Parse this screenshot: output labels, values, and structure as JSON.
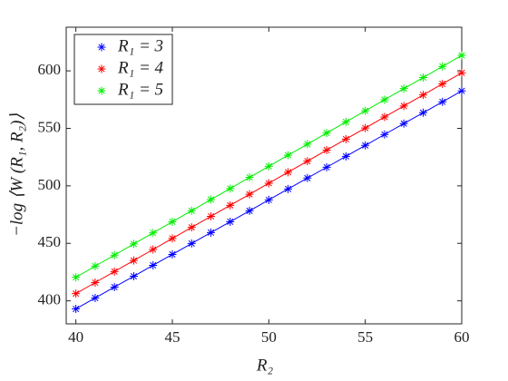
{
  "chart_data": {
    "type": "line",
    "x": [
      40,
      41,
      42,
      43,
      44,
      45,
      46,
      47,
      48,
      49,
      50,
      51,
      52,
      53,
      54,
      55,
      56,
      57,
      58,
      59,
      60
    ],
    "series": [
      {
        "name": "R₁ = 3",
        "color": "#0000ff",
        "values": [
          393.0,
          402.5,
          412.0,
          421.4,
          430.9,
          440.4,
          449.9,
          459.4,
          468.8,
          478.3,
          487.8,
          497.3,
          506.8,
          516.2,
          525.7,
          535.2,
          544.7,
          554.2,
          563.6,
          573.1,
          582.6
        ]
      },
      {
        "name": "R₁ = 4",
        "color": "#ff0000",
        "values": [
          406.3,
          415.9,
          425.5,
          435.1,
          444.7,
          454.3,
          463.9,
          473.5,
          483.1,
          492.7,
          502.3,
          511.9,
          521.5,
          531.1,
          540.7,
          550.3,
          559.9,
          569.5,
          579.1,
          588.7,
          598.3
        ]
      },
      {
        "name": "R₁ = 5",
        "color": "#00ee00",
        "values": [
          420.5,
          430.2,
          439.8,
          449.5,
          459.1,
          468.8,
          478.4,
          488.1,
          497.7,
          507.4,
          517.0,
          526.7,
          536.3,
          546.0,
          555.6,
          565.3,
          574.9,
          584.6,
          594.2,
          603.9,
          613.5
        ]
      }
    ],
    "xlabel": "R₂",
    "ylabel": "−log ⟨W (R₁, R₂)⟩",
    "xlim": [
      39.5,
      60
    ],
    "xticks": [
      40,
      45,
      50,
      55,
      60
    ],
    "ylim": [
      380,
      638
    ],
    "yticks": [
      400,
      450,
      500,
      550,
      600
    ],
    "legend": "upper-left"
  }
}
